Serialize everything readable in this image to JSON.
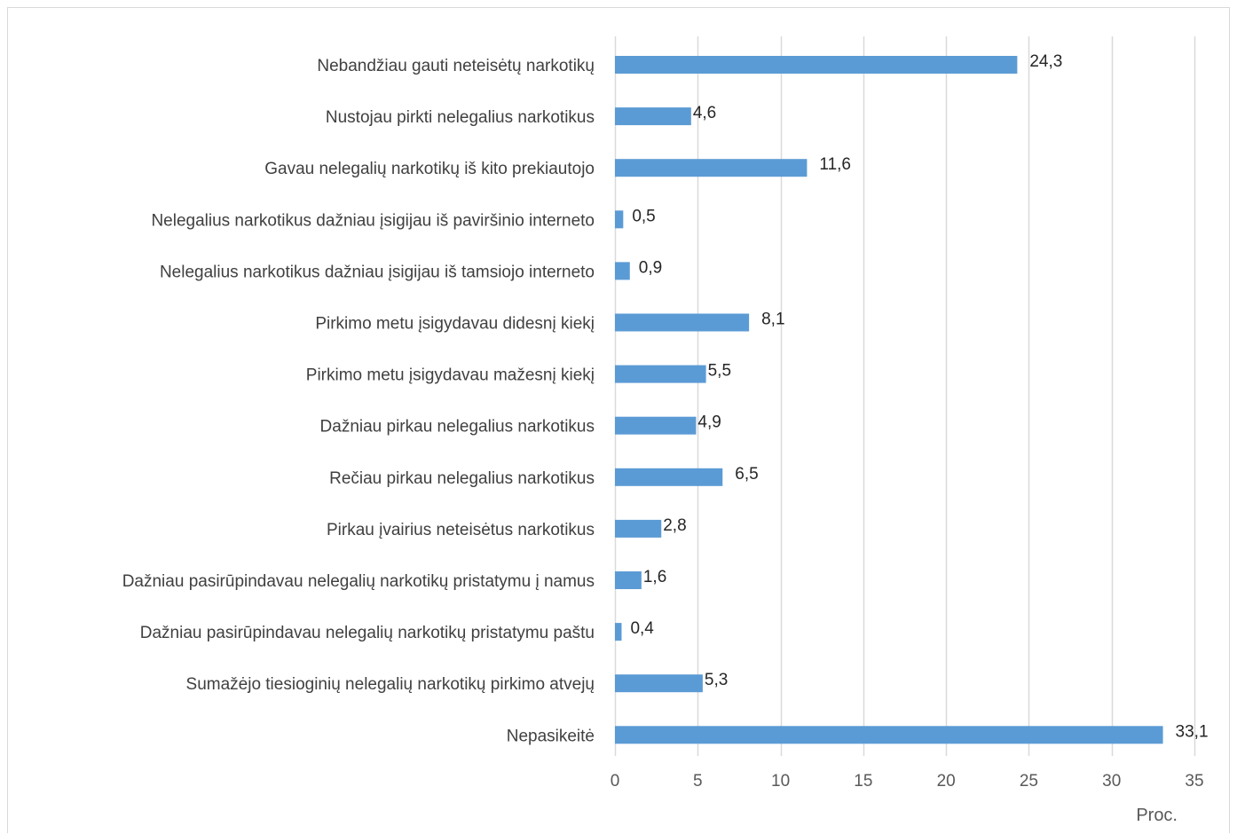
{
  "chart_data": {
    "type": "bar",
    "orientation": "horizontal",
    "categories": [
      "Nebandžiau gauti neteisėtų narkotikų",
      "Nustojau pirkti nelegalius narkotikus",
      "Gavau nelegalių narkotikų iš kito prekiautojo",
      "Nelegalius narkotikus dažniau įsigijau iš paviršinio interneto",
      "Nelegalius narkotikus dažniau įsigijau iš tamsiojo interneto",
      "Pirkimo metu įsigydavau didesnį kiekį",
      "Pirkimo metu įsigydavau mažesnį kiekį",
      "Dažniau pirkau nelegalius narkotikus",
      "Rečiau pirkau nelegalius narkotikus",
      "Pirkau įvairius neteisėtus narkotikus",
      "Dažniau pasirūpindavau nelegalių narkotikų pristatymu į namus",
      "Dažniau pasirūpindavau nelegalių narkotikų pristatymu paštu",
      "Sumažėjo tiesioginių nelegalių narkotikų pirkimo atvejų",
      "Nepasikeitė"
    ],
    "values": [
      24.3,
      4.6,
      11.6,
      0.5,
      0.9,
      8.1,
      5.5,
      4.9,
      6.5,
      2.8,
      1.6,
      0.4,
      5.3,
      33.1
    ],
    "value_labels": [
      "24,3",
      "4,6",
      "11,6",
      "0,5",
      "0,9",
      "8,1",
      "5,5",
      "4,9",
      "6,5",
      "2,8",
      "1,6",
      "0,4",
      "5,3",
      "33,1"
    ],
    "xlim": [
      0,
      35
    ],
    "xticks": [
      0,
      5,
      10,
      15,
      20,
      25,
      30,
      35
    ],
    "xlabel": "Proc.",
    "title": "",
    "grid": "vertical",
    "legend": "none",
    "bar_color": "#5b9bd5",
    "grid_color": "#d9d9d9"
  }
}
